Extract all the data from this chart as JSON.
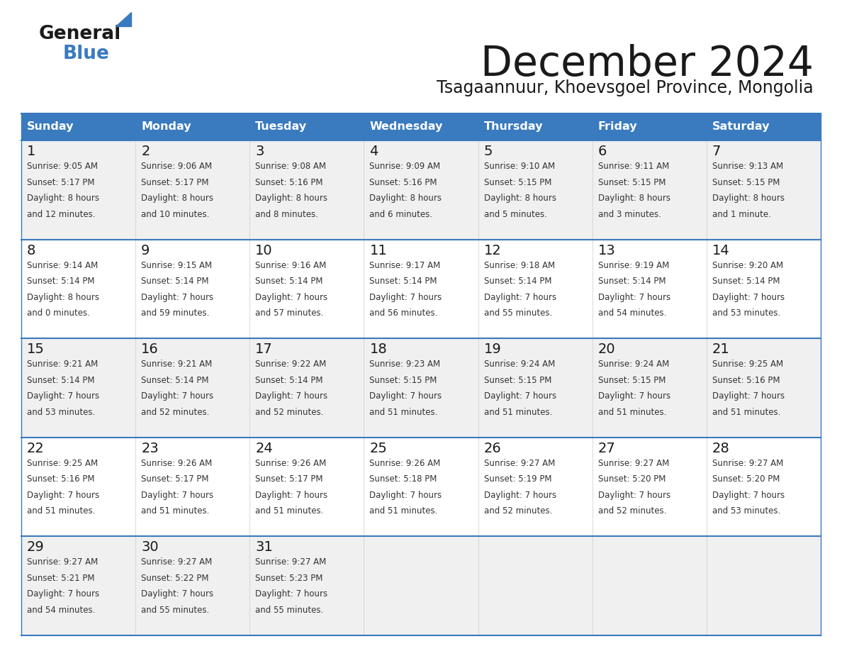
{
  "title": "December 2024",
  "subtitle": "Tsagaannuur, Khoevsgoel Province, Mongolia",
  "header_color": "#3a7abf",
  "header_text_color": "#ffffff",
  "cell_bg_even": "#f0f0f0",
  "cell_bg_odd": "#ffffff",
  "day_names": [
    "Sunday",
    "Monday",
    "Tuesday",
    "Wednesday",
    "Thursday",
    "Friday",
    "Saturday"
  ],
  "weeks": [
    [
      {
        "day": 1,
        "sunrise": "9:05 AM",
        "sunset": "5:17 PM",
        "daylight_line1": "Daylight: 8 hours",
        "daylight_line2": "and 12 minutes."
      },
      {
        "day": 2,
        "sunrise": "9:06 AM",
        "sunset": "5:17 PM",
        "daylight_line1": "Daylight: 8 hours",
        "daylight_line2": "and 10 minutes."
      },
      {
        "day": 3,
        "sunrise": "9:08 AM",
        "sunset": "5:16 PM",
        "daylight_line1": "Daylight: 8 hours",
        "daylight_line2": "and 8 minutes."
      },
      {
        "day": 4,
        "sunrise": "9:09 AM",
        "sunset": "5:16 PM",
        "daylight_line1": "Daylight: 8 hours",
        "daylight_line2": "and 6 minutes."
      },
      {
        "day": 5,
        "sunrise": "9:10 AM",
        "sunset": "5:15 PM",
        "daylight_line1": "Daylight: 8 hours",
        "daylight_line2": "and 5 minutes."
      },
      {
        "day": 6,
        "sunrise": "9:11 AM",
        "sunset": "5:15 PM",
        "daylight_line1": "Daylight: 8 hours",
        "daylight_line2": "and 3 minutes."
      },
      {
        "day": 7,
        "sunrise": "9:13 AM",
        "sunset": "5:15 PM",
        "daylight_line1": "Daylight: 8 hours",
        "daylight_line2": "and 1 minute."
      }
    ],
    [
      {
        "day": 8,
        "sunrise": "9:14 AM",
        "sunset": "5:14 PM",
        "daylight_line1": "Daylight: 8 hours",
        "daylight_line2": "and 0 minutes."
      },
      {
        "day": 9,
        "sunrise": "9:15 AM",
        "sunset": "5:14 PM",
        "daylight_line1": "Daylight: 7 hours",
        "daylight_line2": "and 59 minutes."
      },
      {
        "day": 10,
        "sunrise": "9:16 AM",
        "sunset": "5:14 PM",
        "daylight_line1": "Daylight: 7 hours",
        "daylight_line2": "and 57 minutes."
      },
      {
        "day": 11,
        "sunrise": "9:17 AM",
        "sunset": "5:14 PM",
        "daylight_line1": "Daylight: 7 hours",
        "daylight_line2": "and 56 minutes."
      },
      {
        "day": 12,
        "sunrise": "9:18 AM",
        "sunset": "5:14 PM",
        "daylight_line1": "Daylight: 7 hours",
        "daylight_line2": "and 55 minutes."
      },
      {
        "day": 13,
        "sunrise": "9:19 AM",
        "sunset": "5:14 PM",
        "daylight_line1": "Daylight: 7 hours",
        "daylight_line2": "and 54 minutes."
      },
      {
        "day": 14,
        "sunrise": "9:20 AM",
        "sunset": "5:14 PM",
        "daylight_line1": "Daylight: 7 hours",
        "daylight_line2": "and 53 minutes."
      }
    ],
    [
      {
        "day": 15,
        "sunrise": "9:21 AM",
        "sunset": "5:14 PM",
        "daylight_line1": "Daylight: 7 hours",
        "daylight_line2": "and 53 minutes."
      },
      {
        "day": 16,
        "sunrise": "9:21 AM",
        "sunset": "5:14 PM",
        "daylight_line1": "Daylight: 7 hours",
        "daylight_line2": "and 52 minutes."
      },
      {
        "day": 17,
        "sunrise": "9:22 AM",
        "sunset": "5:14 PM",
        "daylight_line1": "Daylight: 7 hours",
        "daylight_line2": "and 52 minutes."
      },
      {
        "day": 18,
        "sunrise": "9:23 AM",
        "sunset": "5:15 PM",
        "daylight_line1": "Daylight: 7 hours",
        "daylight_line2": "and 51 minutes."
      },
      {
        "day": 19,
        "sunrise": "9:24 AM",
        "sunset": "5:15 PM",
        "daylight_line1": "Daylight: 7 hours",
        "daylight_line2": "and 51 minutes."
      },
      {
        "day": 20,
        "sunrise": "9:24 AM",
        "sunset": "5:15 PM",
        "daylight_line1": "Daylight: 7 hours",
        "daylight_line2": "and 51 minutes."
      },
      {
        "day": 21,
        "sunrise": "9:25 AM",
        "sunset": "5:16 PM",
        "daylight_line1": "Daylight: 7 hours",
        "daylight_line2": "and 51 minutes."
      }
    ],
    [
      {
        "day": 22,
        "sunrise": "9:25 AM",
        "sunset": "5:16 PM",
        "daylight_line1": "Daylight: 7 hours",
        "daylight_line2": "and 51 minutes."
      },
      {
        "day": 23,
        "sunrise": "9:26 AM",
        "sunset": "5:17 PM",
        "daylight_line1": "Daylight: 7 hours",
        "daylight_line2": "and 51 minutes."
      },
      {
        "day": 24,
        "sunrise": "9:26 AM",
        "sunset": "5:17 PM",
        "daylight_line1": "Daylight: 7 hours",
        "daylight_line2": "and 51 minutes."
      },
      {
        "day": 25,
        "sunrise": "9:26 AM",
        "sunset": "5:18 PM",
        "daylight_line1": "Daylight: 7 hours",
        "daylight_line2": "and 51 minutes."
      },
      {
        "day": 26,
        "sunrise": "9:27 AM",
        "sunset": "5:19 PM",
        "daylight_line1": "Daylight: 7 hours",
        "daylight_line2": "and 52 minutes."
      },
      {
        "day": 27,
        "sunrise": "9:27 AM",
        "sunset": "5:20 PM",
        "daylight_line1": "Daylight: 7 hours",
        "daylight_line2": "and 52 minutes."
      },
      {
        "day": 28,
        "sunrise": "9:27 AM",
        "sunset": "5:20 PM",
        "daylight_line1": "Daylight: 7 hours",
        "daylight_line2": "and 53 minutes."
      }
    ],
    [
      {
        "day": 29,
        "sunrise": "9:27 AM",
        "sunset": "5:21 PM",
        "daylight_line1": "Daylight: 7 hours",
        "daylight_line2": "and 54 minutes."
      },
      {
        "day": 30,
        "sunrise": "9:27 AM",
        "sunset": "5:22 PM",
        "daylight_line1": "Daylight: 7 hours",
        "daylight_line2": "and 55 minutes."
      },
      {
        "day": 31,
        "sunrise": "9:27 AM",
        "sunset": "5:23 PM",
        "daylight_line1": "Daylight: 7 hours",
        "daylight_line2": "and 55 minutes."
      },
      null,
      null,
      null,
      null
    ]
  ],
  "background_color": "#ffffff",
  "line_color": "#3a7abf",
  "text_color": "#1a1a1a",
  "cell_text_color": "#333333"
}
